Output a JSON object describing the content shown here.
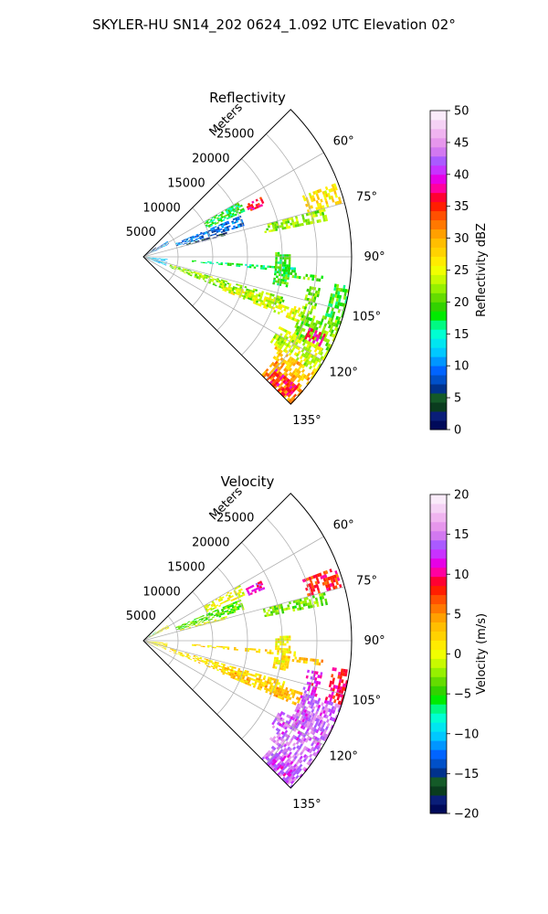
{
  "suptitle": "SKYLER-HU  SN14_202  0624_1.092 UTC Elevation 02°",
  "chart_data": [
    {
      "type": "heatmap",
      "projection": "polar-sector",
      "title": "Reflectivity",
      "radial_axis_label": "Meters",
      "radial_ticks": [
        5000,
        10000,
        15000,
        20000,
        25000
      ],
      "radial_tick_labels": [
        "5000",
        "10000",
        "15000",
        "20000",
        "25000"
      ],
      "radial_max": 30000,
      "angle_range_deg": [
        45,
        135
      ],
      "angle_ticks": [
        60,
        75,
        90,
        105,
        120,
        135
      ],
      "angle_tick_labels": [
        "60°",
        "75°",
        "90°",
        "105°",
        "120°",
        "135°"
      ],
      "grid": true,
      "colorbar": {
        "label": "Reflectivity dBZ",
        "range": [
          0,
          50
        ],
        "ticks": [
          0,
          5,
          10,
          15,
          20,
          25,
          30,
          35,
          40,
          45,
          50
        ],
        "tick_labels": [
          "0",
          "5",
          "10",
          "15",
          "20",
          "25",
          "30",
          "35",
          "40",
          "45",
          "50"
        ],
        "colors": [
          "#000a5a",
          "#0a1e78",
          "#0a3c1e",
          "#145a28",
          "#00328c",
          "#0050c8",
          "#0064ff",
          "#0096ff",
          "#00c8ff",
          "#00e6f0",
          "#00ffd2",
          "#00fa82",
          "#00eb00",
          "#32d200",
          "#64dc00",
          "#96f000",
          "#c8fa00",
          "#f0ff00",
          "#ffeb00",
          "#ffd200",
          "#ffbe00",
          "#ffa000",
          "#ff7800",
          "#ff5000",
          "#ff1e00",
          "#ff0032",
          "#ff00a0",
          "#e600e6",
          "#c832ff",
          "#aa5aff",
          "#d278f0",
          "#e696ec",
          "#f0b4f0",
          "#f5d2f5",
          "#faebfa"
        ]
      },
      "features": [
        {
          "az": [
            52,
            56
          ],
          "r": [
            0,
            2000
          ],
          "value": 3
        },
        {
          "az": [
            57,
            64
          ],
          "r": [
            0,
            4000
          ],
          "value": 10
        },
        {
          "az": [
            95,
            112
          ],
          "r": [
            0,
            3500
          ],
          "value": 12
        },
        {
          "az": [
            67,
            73
          ],
          "r": [
            5000,
            15000
          ],
          "value": 9
        },
        {
          "az": [
            73.5,
            75
          ],
          "r": [
            5500,
            12500
          ],
          "value": 3
        },
        {
          "az": [
            75,
            78.5
          ],
          "r": [
            17800,
            26800
          ],
          "value": 22
        },
        {
          "az": [
            69,
            74.5
          ],
          "r": [
            24500,
            29600
          ],
          "value": 27
        },
        {
          "az": [
            94,
            96
          ],
          "r": [
            7000,
            22000
          ],
          "value": 17
        },
        {
          "az": [
            96,
            98
          ],
          "r": [
            20000,
            26000
          ],
          "value": 20
        },
        {
          "az": [
            88,
            102
          ],
          "r": [
            19000,
            21000
          ],
          "value": 19
        },
        {
          "az": [
            100,
            108
          ],
          "r": [
            24000,
            26000
          ],
          "value": 21
        },
        {
          "az": [
            106,
            112
          ],
          "r": [
            4000,
            21000
          ],
          "value": 22
        },
        {
          "az": [
            108,
            113
          ],
          "r": [
            12000,
            24000
          ],
          "value": 25
        },
        {
          "az": [
            108,
            118
          ],
          "r": [
            24000,
            30000
          ],
          "value": 21
        },
        {
          "az": [
            113,
            117
          ],
          "r": [
            26000,
            28500
          ],
          "value": 38
        },
        {
          "az": [
            117,
            124
          ],
          "r": [
            22000,
            30000
          ],
          "value": 24
        },
        {
          "az": [
            124,
            128
          ],
          "r": [
            23000,
            30000
          ],
          "value": 29
        },
        {
          "az": [
            128,
            135
          ],
          "r": [
            24000,
            30000
          ],
          "value": 31
        },
        {
          "az": [
            130,
            135
          ],
          "r": [
            25000,
            29000
          ],
          "value": 36
        },
        {
          "az": [
            98,
            108
          ],
          "r": [
            27500,
            30000
          ],
          "value": 19
        },
        {
          "az": [
            60,
            66
          ],
          "r": [
            10000,
            16000
          ],
          "value": 18
        },
        {
          "az": [
            63,
            67
          ],
          "r": [
            16500,
            19000
          ],
          "value": 36
        }
      ]
    },
    {
      "type": "heatmap",
      "projection": "polar-sector",
      "title": "Velocity",
      "radial_axis_label": "Meters",
      "radial_ticks": [
        5000,
        10000,
        15000,
        20000,
        25000
      ],
      "radial_tick_labels": [
        "5000",
        "10000",
        "15000",
        "20000",
        "25000"
      ],
      "radial_max": 30000,
      "angle_range_deg": [
        45,
        135
      ],
      "angle_ticks": [
        60,
        75,
        90,
        105,
        120,
        135
      ],
      "angle_tick_labels": [
        "60°",
        "75°",
        "90°",
        "105°",
        "120°",
        "135°"
      ],
      "grid": true,
      "colorbar": {
        "label": "Velocity (m/s)",
        "range": [
          -20,
          20
        ],
        "ticks": [
          -20,
          -15,
          -10,
          -5,
          0,
          5,
          10,
          15,
          20
        ],
        "tick_labels": [
          "−20",
          "−15",
          "−10",
          "−5",
          "0",
          "5",
          "10",
          "15",
          "20"
        ],
        "colors": [
          "#000a5a",
          "#0a1e78",
          "#0a3c1e",
          "#145a28",
          "#00328c",
          "#0050c8",
          "#0064ff",
          "#0096ff",
          "#00c8ff",
          "#00e6f0",
          "#00ffd2",
          "#00fa82",
          "#00eb00",
          "#32d200",
          "#64dc00",
          "#96f000",
          "#c8fa00",
          "#f0ff00",
          "#ffeb00",
          "#ffd200",
          "#ffbe00",
          "#ffa000",
          "#ff7800",
          "#ff5000",
          "#ff1e00",
          "#ff0032",
          "#ff00a0",
          "#e600e6",
          "#c832ff",
          "#aa5aff",
          "#d278f0",
          "#e696ec",
          "#f0b4f0",
          "#f5d2f5",
          "#faebfa"
        ]
      },
      "features": [
        {
          "az": [
            52,
            56
          ],
          "r": [
            0,
            2000
          ],
          "value": -6
        },
        {
          "az": [
            57,
            64
          ],
          "r": [
            0,
            4000
          ],
          "value": 0
        },
        {
          "az": [
            95,
            112
          ],
          "r": [
            0,
            3500
          ],
          "value": 1
        },
        {
          "az": [
            67,
            73
          ],
          "r": [
            5000,
            15000
          ],
          "value": -4
        },
        {
          "az": [
            73.5,
            75
          ],
          "r": [
            5500,
            12500
          ],
          "value": 0
        },
        {
          "az": [
            75,
            78.5
          ],
          "r": [
            17800,
            26800
          ],
          "value": -3
        },
        {
          "az": [
            69,
            74.5
          ],
          "r": [
            24500,
            29600
          ],
          "value": 8
        },
        {
          "az": [
            94,
            96
          ],
          "r": [
            7000,
            22000
          ],
          "value": 2
        },
        {
          "az": [
            96,
            98
          ],
          "r": [
            20000,
            26000
          ],
          "value": 3
        },
        {
          "az": [
            88,
            102
          ],
          "r": [
            19000,
            21000
          ],
          "value": 1
        },
        {
          "az": [
            100,
            108
          ],
          "r": [
            24000,
            26000
          ],
          "value": 12
        },
        {
          "az": [
            106,
            112
          ],
          "r": [
            4000,
            21000
          ],
          "value": 2
        },
        {
          "az": [
            108,
            113
          ],
          "r": [
            12000,
            24000
          ],
          "value": 3
        },
        {
          "az": [
            108,
            118
          ],
          "r": [
            24000,
            30000
          ],
          "value": 14
        },
        {
          "az": [
            113,
            117
          ],
          "r": [
            26000,
            28500
          ],
          "value": 15
        },
        {
          "az": [
            117,
            124
          ],
          "r": [
            22000,
            30000
          ],
          "value": 14
        },
        {
          "az": [
            124,
            128
          ],
          "r": [
            23000,
            30000
          ],
          "value": 15
        },
        {
          "az": [
            128,
            135
          ],
          "r": [
            24000,
            30000
          ],
          "value": 14
        },
        {
          "az": [
            130,
            135
          ],
          "r": [
            25000,
            29000
          ],
          "value": 13
        },
        {
          "az": [
            98,
            108
          ],
          "r": [
            27500,
            30000
          ],
          "value": 9
        },
        {
          "az": [
            60,
            66
          ],
          "r": [
            10000,
            16000
          ],
          "value": 0
        },
        {
          "az": [
            63,
            67
          ],
          "r": [
            16500,
            19000
          ],
          "value": 11
        }
      ]
    }
  ]
}
